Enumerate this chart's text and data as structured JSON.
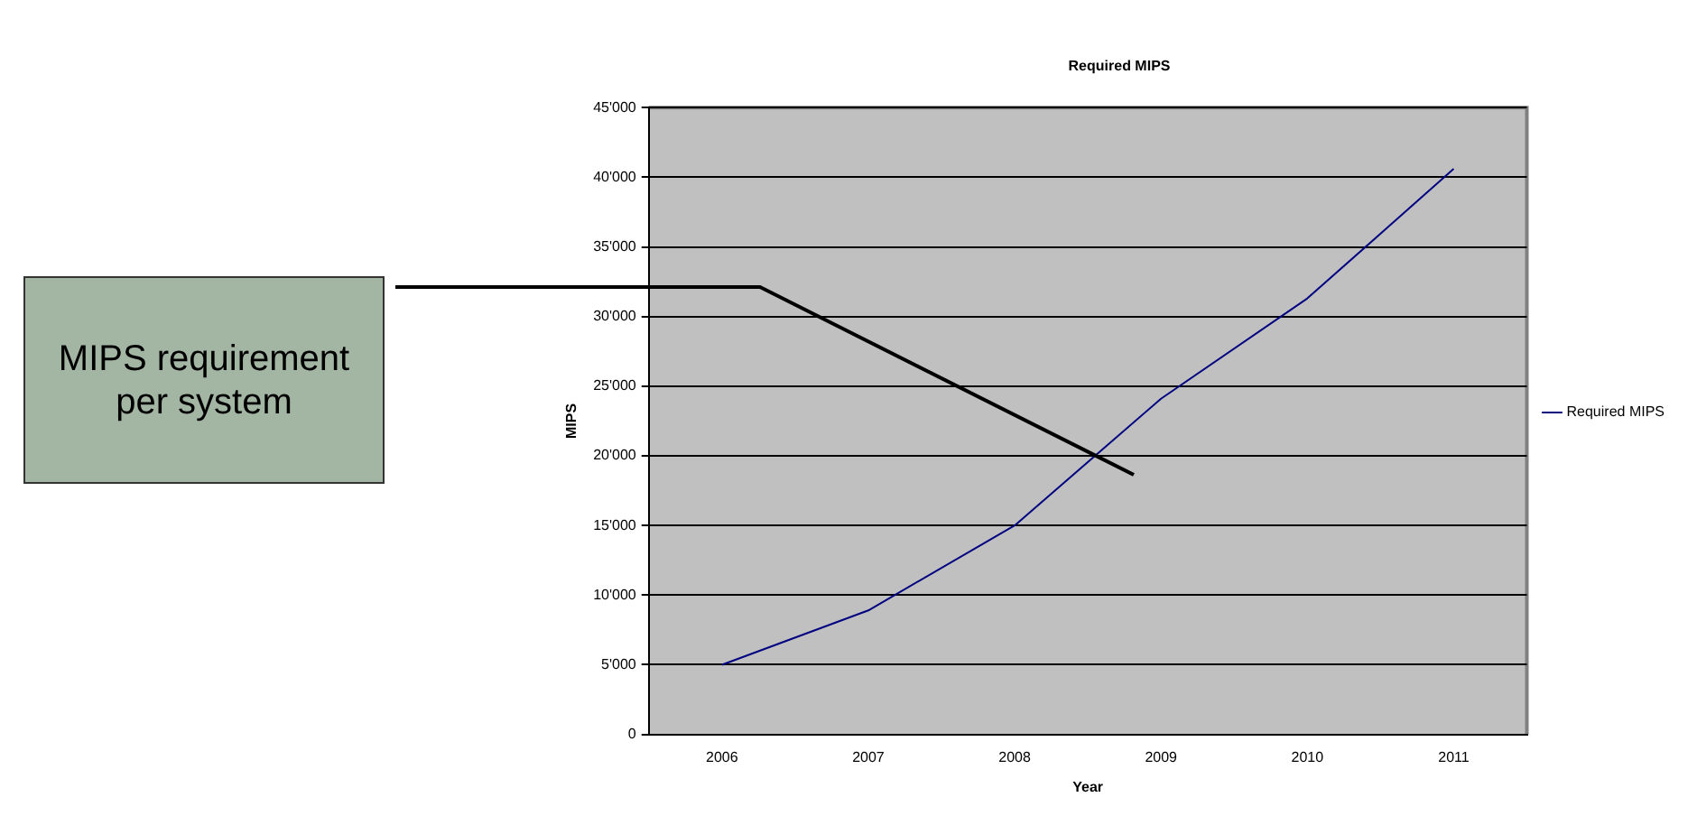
{
  "chart_data": {
    "type": "line",
    "title": "Required MIPS",
    "xlabel": "Year",
    "ylabel": "MIPS",
    "categories": [
      "2006",
      "2007",
      "2008",
      "2009",
      "2010",
      "2011"
    ],
    "series": [
      {
        "name": "Required MIPS",
        "color": "#000080",
        "values": [
          5000,
          8900,
          15000,
          24100,
          31300,
          40600
        ]
      }
    ],
    "ylim": [
      0,
      45000
    ],
    "yticks": [
      0,
      {
        "value": 5000,
        "label": "5'000"
      },
      {
        "value": 10000,
        "label": "10'000"
      },
      {
        "value": 15000,
        "label": "15'000"
      },
      {
        "value": 20000,
        "label": "20'000"
      },
      {
        "value": 25000,
        "label": "25'000"
      },
      {
        "value": 30000,
        "label": "30'000"
      },
      {
        "value": 35000,
        "label": "35'000"
      },
      {
        "value": 40000,
        "label": "40'000"
      },
      {
        "value": 45000,
        "label": "45'000"
      }
    ],
    "grid": "y",
    "legend": "right",
    "marker": "none",
    "line_style": "solid",
    "annotations": [
      "MIPS requirement per system"
    ]
  }
}
